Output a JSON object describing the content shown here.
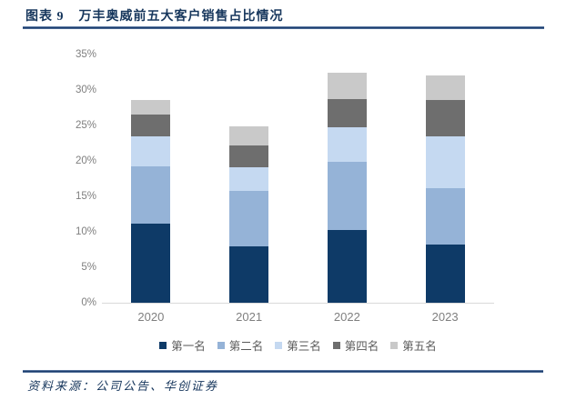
{
  "figure": {
    "label": "图表 9",
    "title": "万丰奥威前五大客户销售占比情况"
  },
  "chart_data": {
    "type": "bar",
    "stacked": true,
    "title": "万丰奥威前五大客户销售占比情况",
    "categories": [
      "2020",
      "2021",
      "2022",
      "2023"
    ],
    "series": [
      {
        "name": "第一名",
        "color": "#0E3A67",
        "values": [
          11.2,
          8.0,
          10.3,
          8.2
        ]
      },
      {
        "name": "第二名",
        "color": "#95B3D7",
        "values": [
          8.0,
          7.8,
          9.6,
          8.0
        ]
      },
      {
        "name": "第三名",
        "color": "#C5D9F1",
        "values": [
          4.3,
          3.3,
          4.9,
          7.2
        ]
      },
      {
        "name": "第四名",
        "color": "#6E6E6E",
        "values": [
          3.0,
          3.1,
          3.9,
          5.2
        ]
      },
      {
        "name": "第五名",
        "color": "#C9C9C9",
        "values": [
          2.1,
          2.7,
          3.8,
          3.5
        ]
      }
    ],
    "ylim": [
      0,
      35
    ],
    "ytick_step": 5,
    "yticks": [
      "0%",
      "5%",
      "10%",
      "15%",
      "20%",
      "25%",
      "30%",
      "35%"
    ],
    "xlabel": "",
    "ylabel": "",
    "grid": false,
    "legend_position": "bottom"
  },
  "footer": {
    "source_text": "资料来源：公司公告、华创证券"
  },
  "colors": {
    "title_text": "#16365C",
    "divider_rule": "#1C3D6E",
    "axis_text": "#7F7F7F",
    "legend_text": "#595959",
    "axis_line": "#D9D9D9",
    "source_text": "#16365C"
  }
}
